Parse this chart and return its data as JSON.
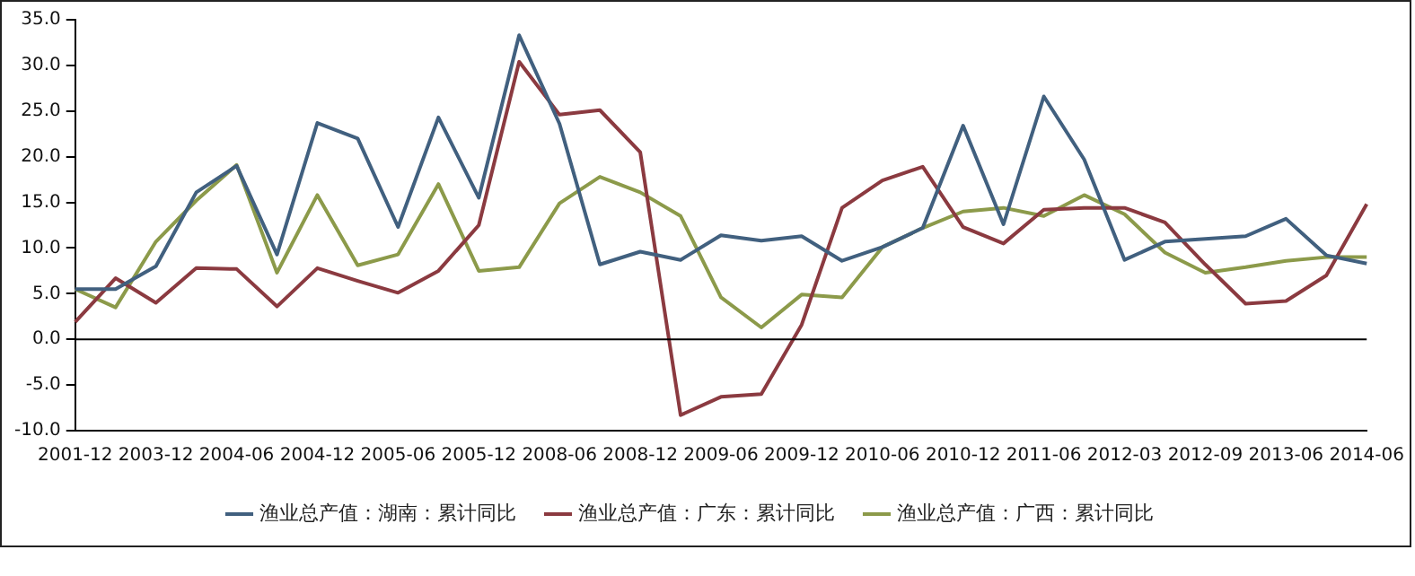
{
  "chart_data": {
    "type": "line",
    "categories": [
      "2001-12",
      null,
      "2003-12",
      null,
      "2004-06",
      null,
      "2004-12",
      null,
      "2005-06",
      null,
      "2005-12",
      null,
      "2008-06",
      null,
      "2008-12",
      null,
      "2009-06",
      null,
      "2009-12",
      null,
      "2010-06",
      null,
      "2010-12",
      null,
      "2011-06",
      null,
      "2012-03",
      null,
      "2012-09",
      null,
      "2013-06",
      null,
      "2014-06"
    ],
    "series": [
      {
        "name": "渔业总产值：湖南：累计同比",
        "color": "#41607f",
        "values": [
          5.5,
          5.5,
          8.0,
          16.1,
          19.0,
          9.3,
          23.7,
          22.0,
          12.3,
          24.3,
          15.5,
          33.3,
          23.6,
          8.2,
          9.6,
          8.7,
          11.4,
          10.8,
          11.3,
          8.6,
          10.1,
          12.2,
          23.4,
          12.6,
          26.6,
          19.7,
          8.7,
          10.7,
          11.0,
          11.3,
          13.2,
          9.2,
          8.3
        ]
      },
      {
        "name": "渔业总产值：广东：累计同比",
        "color": "#8b3a40",
        "values": [
          1.9,
          6.7,
          4.0,
          7.8,
          7.7,
          3.6,
          7.8,
          6.4,
          5.1,
          7.5,
          12.5,
          30.4,
          24.6,
          25.1,
          20.5,
          -8.3,
          -6.3,
          -6.0,
          1.6,
          14.4,
          17.4,
          18.9,
          12.3,
          10.5,
          14.2,
          14.4,
          14.4,
          12.8,
          8.2,
          3.9,
          4.2,
          7.0,
          14.8
        ]
      },
      {
        "name": "渔业总产值：广西：累计同比",
        "color": "#8c9a4a",
        "values": [
          5.5,
          3.5,
          10.7,
          15.2,
          19.1,
          7.3,
          15.8,
          8.1,
          9.3,
          17.0,
          7.5,
          7.9,
          14.9,
          17.8,
          16.1,
          13.5,
          4.6,
          1.3,
          4.9,
          4.6,
          10.1,
          12.2,
          14.0,
          14.4,
          13.5,
          15.8,
          13.7,
          9.5,
          7.3,
          7.9,
          8.6,
          9.0,
          9.0
        ]
      }
    ],
    "ylim": [
      -10,
      35
    ],
    "yticks": [
      {
        "value": -10,
        "label": "-10.0"
      },
      {
        "value": -5,
        "label": "-5.0"
      },
      {
        "value": 0,
        "label": "0.0"
      },
      {
        "value": 5,
        "label": "5.0"
      },
      {
        "value": 10,
        "label": "10.0"
      },
      {
        "value": 15,
        "label": "15.0"
      },
      {
        "value": 20,
        "label": "20.0"
      },
      {
        "value": 25,
        "label": "25.0"
      },
      {
        "value": 30,
        "label": "30.0"
      },
      {
        "value": 35,
        "label": "35.0"
      }
    ],
    "ref_lines": [
      {
        "axis": "y",
        "value": 0,
        "color": "#000000"
      }
    ],
    "grid": false,
    "legend": "bottom",
    "marker": "none",
    "line_style": "solid"
  }
}
